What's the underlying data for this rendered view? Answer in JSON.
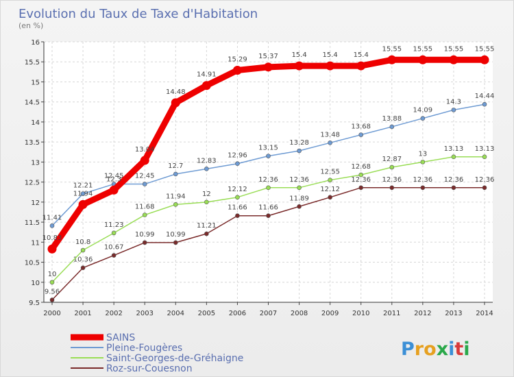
{
  "chart_data": {
    "type": "line",
    "title": "Evolution du Taux de Taxe d'Habitation",
    "subtitle": "(en %)",
    "x": [
      "2000",
      "2001",
      "2002",
      "2003",
      "2004",
      "2005",
      "2006",
      "2007",
      "2008",
      "2009",
      "2010",
      "2011",
      "2012",
      "2013",
      "2014"
    ],
    "ylim": [
      9.5,
      16
    ],
    "yticks": [
      9.5,
      10,
      10.5,
      11,
      11.5,
      12,
      12.5,
      13,
      13.5,
      14,
      14.5,
      15,
      15.5,
      16
    ],
    "ytick_labels": [
      "9.5",
      "10",
      "10.5",
      "11",
      "11.5",
      "12",
      "12.5",
      "13",
      "13.5",
      "14",
      "14.5",
      "15",
      "15.5",
      "16"
    ],
    "grid": true,
    "legend_position": "bottom-left",
    "series": [
      {
        "name": "SAINS",
        "color": "#ee0000",
        "values": [
          10.83,
          11.94,
          12.3,
          13.04,
          14.48,
          14.91,
          15.29,
          15.37,
          15.4,
          15.4,
          15.4,
          15.55,
          15.55,
          15.55,
          15.55
        ],
        "labels": [
          "10.83",
          "11.94",
          "12.3",
          "13.04",
          "14.48",
          "14.91",
          "15.29",
          "15.37",
          "15.4",
          "15.4",
          "15.4",
          "15.55",
          "15.55",
          "15.55",
          "15.55"
        ]
      },
      {
        "name": "Pleine-Fougères",
        "color": "#6e9bd3",
        "values": [
          11.41,
          12.21,
          12.45,
          12.45,
          12.7,
          12.83,
          12.96,
          13.15,
          13.28,
          13.48,
          13.68,
          13.88,
          14.09,
          14.3,
          14.44
        ],
        "labels": [
          "11.41",
          "12.21",
          "12.45",
          "12.45",
          "12.7",
          "12.83",
          "12.96",
          "13.15",
          "13.28",
          "13.48",
          "13.68",
          "13.88",
          "14.09",
          "14.3",
          "14.44"
        ]
      },
      {
        "name": "Saint-Georges-de-Gréhaigne",
        "color": "#99dd55",
        "values": [
          10,
          10.8,
          11.23,
          11.68,
          11.94,
          12,
          12.12,
          12.36,
          12.36,
          12.55,
          12.68,
          12.87,
          13,
          13.13,
          13.13
        ],
        "labels": [
          "10",
          "10.8",
          "11.23",
          "11.68",
          "11.94",
          "12",
          "12.12",
          "12.36",
          "12.36",
          "12.55",
          "12.68",
          "12.87",
          "13",
          "13.13",
          "13.13"
        ]
      },
      {
        "name": "Roz-sur-Couesnon",
        "color": "#7a2b2b",
        "values": [
          9.56,
          10.36,
          10.67,
          10.99,
          10.99,
          11.21,
          11.66,
          11.66,
          11.89,
          12.12,
          12.36,
          12.36,
          12.36,
          12.36,
          12.36
        ],
        "labels": [
          "9.56",
          "10.36",
          "10.67",
          "10.99",
          "10.99",
          "11.21",
          "11.66",
          "11.66",
          "11.89",
          "12.12",
          "12.36",
          "12.36",
          "12.36",
          "12.36",
          "12.36"
        ]
      }
    ]
  },
  "logo": {
    "text": "Proxiti"
  }
}
